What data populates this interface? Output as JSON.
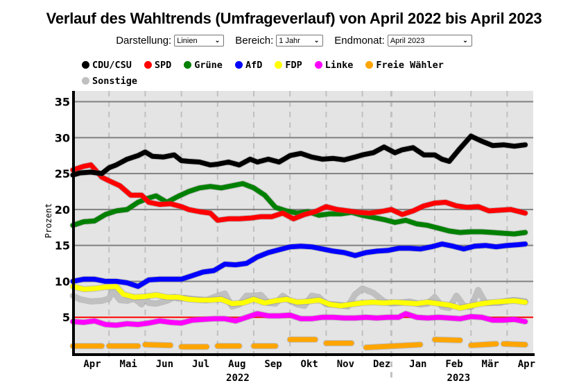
{
  "title": "Verlauf des Wahltrends (Umfrageverlauf) von April 2022 bis April 2023",
  "controls": {
    "darstellung": {
      "label": "Darstellung:",
      "value": "Linien"
    },
    "bereich": {
      "label": "Bereich:",
      "value": "1 Jahr"
    },
    "endmonat": {
      "label": "Endmonat:",
      "value": "April 2023"
    }
  },
  "chart_data": {
    "type": "line",
    "title": "Verlauf des Wahltrends (Umfrageverlauf) von April 2022 bis April 2023",
    "xlabel": "",
    "ylabel": "Prozent",
    "ylim": [
      0,
      36.5
    ],
    "yticks": [
      5,
      10,
      15,
      20,
      25,
      30,
      35
    ],
    "threshold_line": {
      "value": 5,
      "color": "#ff0000"
    },
    "grid": true,
    "legend_position": "top",
    "x_month_labels": [
      "Apr",
      "Mai",
      "Jun",
      "Jul",
      "Aug",
      "Sep",
      "Okt",
      "Nov",
      "Dez",
      "Jan",
      "Feb",
      "Mär",
      "Apr"
    ],
    "x_year_labels": [
      {
        "label": "2022",
        "center_month": 4.5
      },
      {
        "label": "2023",
        "center_month": 10.6
      }
    ],
    "x_month_range": [
      0,
      12.6
    ],
    "year_divider_month": 8.8,
    "series": [
      {
        "name": "CDU/CSU",
        "color": "#000000",
        "x": [
          0,
          0.2,
          0.5,
          0.8,
          1.0,
          1.2,
          1.5,
          1.8,
          2.0,
          2.2,
          2.5,
          2.8,
          3.0,
          3.2,
          3.5,
          3.8,
          4.0,
          4.3,
          4.6,
          4.9,
          5.1,
          5.4,
          5.7,
          6.0,
          6.3,
          6.6,
          6.9,
          7.2,
          7.5,
          7.8,
          8.0,
          8.3,
          8.6,
          8.9,
          9.1,
          9.4,
          9.7,
          10.0,
          10.2,
          10.4,
          10.7,
          11.0,
          11.3,
          11.6,
          11.9,
          12.2,
          12.5
        ],
        "values": [
          24.8,
          25.1,
          25.2,
          25.0,
          25.8,
          26.2,
          27.0,
          27.5,
          28.0,
          27.4,
          27.3,
          27.6,
          26.8,
          26.7,
          26.6,
          26.2,
          26.3,
          26.6,
          26.2,
          27.0,
          26.6,
          27.0,
          26.6,
          27.5,
          27.8,
          27.3,
          27.0,
          27.1,
          26.9,
          27.3,
          27.6,
          27.9,
          28.7,
          27.9,
          28.3,
          28.6,
          27.6,
          27.6,
          27.0,
          26.7,
          28.5,
          30.2,
          29.5,
          28.9,
          29.0,
          28.8,
          29.0
        ]
      },
      {
        "name": "SPD",
        "color": "#ff0000",
        "x": [
          0,
          0.3,
          0.5,
          0.8,
          1.0,
          1.3,
          1.6,
          1.9,
          2.1,
          2.4,
          2.7,
          3.0,
          3.2,
          3.5,
          3.8,
          4.0,
          4.3,
          4.6,
          4.9,
          5.2,
          5.5,
          5.8,
          6.1,
          6.4,
          6.7,
          7.0,
          7.3,
          7.6,
          7.9,
          8.2,
          8.5,
          8.8,
          9.1,
          9.4,
          9.7,
          10.0,
          10.3,
          10.6,
          10.9,
          11.2,
          11.5,
          11.8,
          12.1,
          12.5
        ],
        "values": [
          25.5,
          26.0,
          26.2,
          24.5,
          24.0,
          23.3,
          22.0,
          22.0,
          21.0,
          20.7,
          20.8,
          20.4,
          20.0,
          19.7,
          19.5,
          18.5,
          18.7,
          18.7,
          18.8,
          19.0,
          19.0,
          19.5,
          18.7,
          19.3,
          19.7,
          20.4,
          20.0,
          19.8,
          19.6,
          19.5,
          19.7,
          20.0,
          19.3,
          19.8,
          20.5,
          20.9,
          21.0,
          20.5,
          20.3,
          20.4,
          19.8,
          19.9,
          20.0,
          19.5
        ]
      },
      {
        "name": "Grüne",
        "color": "#008000",
        "x": [
          0,
          0.3,
          0.6,
          0.9,
          1.2,
          1.5,
          1.8,
          2.1,
          2.3,
          2.6,
          2.9,
          3.2,
          3.5,
          3.8,
          4.1,
          4.4,
          4.7,
          5.0,
          5.3,
          5.6,
          5.9,
          6.2,
          6.5,
          6.8,
          7.1,
          7.4,
          7.7,
          8.0,
          8.3,
          8.6,
          8.9,
          9.2,
          9.5,
          9.8,
          10.1,
          10.4,
          10.7,
          11.0,
          11.3,
          11.6,
          11.9,
          12.2,
          12.5
        ],
        "values": [
          17.8,
          18.3,
          18.4,
          19.3,
          19.8,
          20.0,
          21.0,
          21.6,
          21.9,
          21.0,
          21.8,
          22.5,
          23.0,
          23.2,
          23.0,
          23.3,
          23.6,
          23.0,
          22.0,
          20.3,
          19.8,
          19.5,
          19.7,
          19.2,
          19.4,
          19.4,
          19.6,
          19.2,
          18.9,
          18.6,
          18.2,
          18.5,
          18.0,
          17.8,
          17.4,
          17.0,
          16.8,
          16.9,
          16.9,
          16.8,
          16.7,
          16.6,
          16.8
        ]
      },
      {
        "name": "AfD",
        "color": "#0000ff",
        "x": [
          0,
          0.3,
          0.6,
          0.9,
          1.2,
          1.5,
          1.8,
          2.1,
          2.4,
          2.7,
          3.0,
          3.3,
          3.6,
          3.9,
          4.2,
          4.5,
          4.8,
          5.1,
          5.4,
          5.7,
          6.0,
          6.3,
          6.6,
          6.9,
          7.2,
          7.5,
          7.8,
          8.1,
          8.4,
          8.7,
          9.0,
          9.3,
          9.6,
          9.9,
          10.2,
          10.5,
          10.8,
          11.1,
          11.4,
          11.7,
          12.0,
          12.3,
          12.5
        ],
        "values": [
          10.0,
          10.3,
          10.3,
          10.0,
          10.0,
          9.8,
          9.3,
          10.2,
          10.3,
          10.3,
          10.3,
          10.8,
          11.3,
          11.5,
          12.4,
          12.3,
          12.5,
          13.4,
          14.0,
          14.4,
          14.8,
          14.9,
          14.8,
          14.5,
          14.2,
          14.0,
          13.6,
          14.0,
          14.2,
          14.3,
          14.6,
          14.6,
          14.5,
          14.8,
          15.2,
          14.9,
          14.5,
          14.9,
          15.0,
          14.8,
          15.0,
          15.1,
          15.2
        ]
      },
      {
        "name": "FDP",
        "color": "#ffff00",
        "x": [
          0,
          0.3,
          0.6,
          0.9,
          1.2,
          1.4,
          1.7,
          2.0,
          2.3,
          2.6,
          2.9,
          3.2,
          3.5,
          3.8,
          4.1,
          4.4,
          4.7,
          5.0,
          5.3,
          5.6,
          5.9,
          6.2,
          6.5,
          6.8,
          7.1,
          7.4,
          7.7,
          8.0,
          8.3,
          8.6,
          8.9,
          9.2,
          9.5,
          9.8,
          10.1,
          10.4,
          10.7,
          11.0,
          11.3,
          11.6,
          11.9,
          12.2,
          12.5
        ],
        "values": [
          9.3,
          8.9,
          9.0,
          9.2,
          9.3,
          8.2,
          7.8,
          7.9,
          8.1,
          7.8,
          7.8,
          7.5,
          7.4,
          7.4,
          7.5,
          6.9,
          7.0,
          7.5,
          7.0,
          7.3,
          7.5,
          7.1,
          7.2,
          7.4,
          6.8,
          6.6,
          6.8,
          7.0,
          7.1,
          7.0,
          7.1,
          7.0,
          6.9,
          7.1,
          6.9,
          6.7,
          6.3,
          6.6,
          6.9,
          7.1,
          7.2,
          7.3,
          7.1
        ]
      },
      {
        "name": "Linke",
        "color": "#ff00ff",
        "x": [
          0,
          0.3,
          0.6,
          0.9,
          1.2,
          1.5,
          1.8,
          2.1,
          2.4,
          2.7,
          3.0,
          3.3,
          3.6,
          3.9,
          4.2,
          4.5,
          4.8,
          5.1,
          5.4,
          5.7,
          6.0,
          6.3,
          6.6,
          6.9,
          7.2,
          7.5,
          7.8,
          8.1,
          8.4,
          8.7,
          9.0,
          9.2,
          9.5,
          9.8,
          10.1,
          10.4,
          10.7,
          11.0,
          11.3,
          11.6,
          11.9,
          12.2,
          12.5
        ],
        "values": [
          4.4,
          4.3,
          4.5,
          4.0,
          3.9,
          4.1,
          4.0,
          4.2,
          4.5,
          4.3,
          4.2,
          4.6,
          4.7,
          4.8,
          4.8,
          4.5,
          5.0,
          5.5,
          5.2,
          5.2,
          5.3,
          4.8,
          4.8,
          5.0,
          5.0,
          4.9,
          4.9,
          5.0,
          4.9,
          5.0,
          5.0,
          5.5,
          5.0,
          4.9,
          5.0,
          4.9,
          4.8,
          5.1,
          5.0,
          4.6,
          4.6,
          4.7,
          4.4
        ]
      },
      {
        "name": "Freie Wähler",
        "color": "#ffa500",
        "segments": [
          {
            "x": [
              0.0,
              0.8
            ],
            "values": [
              1.0,
              1.0
            ]
          },
          {
            "x": [
              1.0,
              1.8
            ],
            "values": [
              1.0,
              1.0
            ]
          },
          {
            "x": [
              2.0,
              2.7
            ],
            "values": [
              1.2,
              1.1
            ]
          },
          {
            "x": [
              3.0,
              3.7
            ],
            "values": [
              0.9,
              0.9
            ]
          },
          {
            "x": [
              4.0,
              4.6
            ],
            "values": [
              1.0,
              1.0
            ]
          },
          {
            "x": [
              5.0,
              5.6
            ],
            "values": [
              1.0,
              1.0
            ]
          },
          {
            "x": [
              6.0,
              6.7
            ],
            "values": [
              1.9,
              1.9
            ]
          },
          {
            "x": [
              7.0,
              7.7
            ],
            "values": [
              1.4,
              1.4
            ]
          },
          {
            "x": [
              8.1,
              9.6
            ],
            "values": [
              0.8,
              1.2
            ]
          },
          {
            "x": [
              10.0,
              10.7
            ],
            "values": [
              1.9,
              1.8
            ]
          },
          {
            "x": [
              11.0,
              11.7
            ],
            "values": [
              1.1,
              1.3
            ]
          },
          {
            "x": [
              11.9,
              12.5
            ],
            "values": [
              1.3,
              1.2
            ]
          }
        ]
      },
      {
        "name": "Sonstige",
        "color": "#c0c0c0",
        "x": [
          0,
          0.2,
          0.5,
          0.8,
          1.0,
          1.1,
          1.3,
          1.5,
          1.7,
          1.9,
          2.0,
          2.1,
          2.3,
          2.6,
          2.8,
          2.9,
          3.1,
          3.4,
          3.7,
          3.9,
          4.2,
          4.4,
          4.6,
          4.8,
          5.0,
          5.2,
          5.4,
          5.6,
          5.8,
          6.0,
          6.2,
          6.4,
          6.6,
          6.8,
          7.0,
          7.2,
          7.4,
          7.6,
          7.8,
          8.0,
          8.3,
          8.6,
          8.8,
          9.0,
          9.3,
          9.6,
          9.8,
          10.0,
          10.2,
          10.4,
          10.6,
          10.8,
          11.0,
          11.2,
          11.4,
          11.6,
          11.8,
          12.0,
          12.2,
          12.5
        ],
        "values": [
          8.0,
          7.5,
          7.2,
          7.3,
          7.6,
          8.7,
          7.4,
          7.3,
          7.6,
          6.8,
          7.8,
          7.0,
          6.9,
          7.3,
          7.8,
          7.6,
          7.7,
          7.5,
          7.4,
          7.8,
          8.3,
          6.5,
          6.8,
          8.0,
          8.0,
          8.1,
          7.0,
          6.9,
          8.0,
          7.3,
          6.8,
          6.6,
          8.0,
          7.8,
          6.8,
          6.8,
          6.7,
          6.5,
          8.2,
          9.0,
          8.4,
          7.2,
          6.9,
          7.0,
          7.2,
          6.8,
          6.9,
          7.8,
          6.5,
          6.3,
          8.0,
          6.6,
          6.4,
          8.8,
          7.0,
          7.0,
          7.0,
          7.3,
          7.4,
          7.2
        ]
      }
    ]
  }
}
